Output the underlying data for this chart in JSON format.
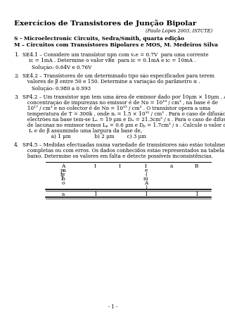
{
  "title": "Exercícios de Transistores de Junção Bipolar",
  "subtitle": "(Paulo Lopes 2003, ISTCTE)",
  "ref1": "S - Microelectronic Circuits, Sedra/Smith, quarta edição",
  "ref2": "M – Circuitos com Transístores Bipolares e MOS, M. Medeiros Silva",
  "item1_l1": "SE4.1 – Considere um transístor npn com vₛe = 0.7V  para uma corrente",
  "item1_l2": "    iᴄ = 1mA . Determine o valor vBᴇ  para iᴄ = 0.1mA e iᴄ = 10mA .",
  "item1_sol": "Solução: 0.64V e 0.76V",
  "item2_l1": "SE4.2 – Transístores de um determinado tipo são especificados para terem",
  "item2_l2": "   valores de β entre 50 e 150. Determine a variação do parâmetro α .",
  "item2_sol": "Solução: 0.980 a 0.993",
  "item3_l1": "SP4.2 – Um transístor npn tem uma área de emissor dado por 10μm × 10μm . A",
  "item3_l2": "   concentração de impurezas no emissor é de Nᴅ = 10¹⁹ / cm³ , na base é de",
  "item3_l3": "   10¹⁷ / cm³ e no colector é de Nᴅ = 10¹⁵ / cm³ . O transístor opera a uma",
  "item3_l4": "   temperatura de T = 300k , onde nᵢ = 1.5 × 10¹⁰ / cm³ . Para o caso de difusão de",
  "item3_l5": "   electrões na base tem-se Lₙ = 19 μm e Dₙ = 21.3cm² / s . Para o caso de difusão",
  "item3_l6": "   de lacunas no emissor temos Lₚ = 0.6 μm e Dₚ = 1.7cm² / s . Calcule o valor de",
  "item3_l7": "    Iₛ e de β assumindo uma largura da base de,",
  "item3_l8": "           a) 1 μm               b) 2 μm        c) 3 μm",
  "item4_l1": "SP4.5 – Medidas efectuadas numa variedade de transístores não estão totalmente",
  "item4_l2": "   completas ou com erros. Os dados conhecidos estão representados na tabela em",
  "item4_l3": "   baixo. Determine os valores em falta e detecte possíveis inconsistências.",
  "tbl_h1": [
    "A",
    "pa",
    "re",
    "lh",
    "o"
  ],
  "tbl_h2": [
    "I"
  ],
  "tbl_h3": [
    "I"
  ],
  "tbl_h4": [
    "I",
    "e",
    "(",
    "m",
    "A",
    ")"
  ],
  "tbl_h5": [
    "a"
  ],
  "tbl_h6": [
    "B"
  ],
  "tbl_row": [
    "a",
    "1",
    "",
    "1",
    "",
    "1"
  ],
  "footer": "- 1 -",
  "bg_color": "#ffffff",
  "text_color": "#000000",
  "title_fs": 7.5,
  "body_fs": 5.2,
  "ref_fs": 5.5,
  "sub_fs": 5.5
}
